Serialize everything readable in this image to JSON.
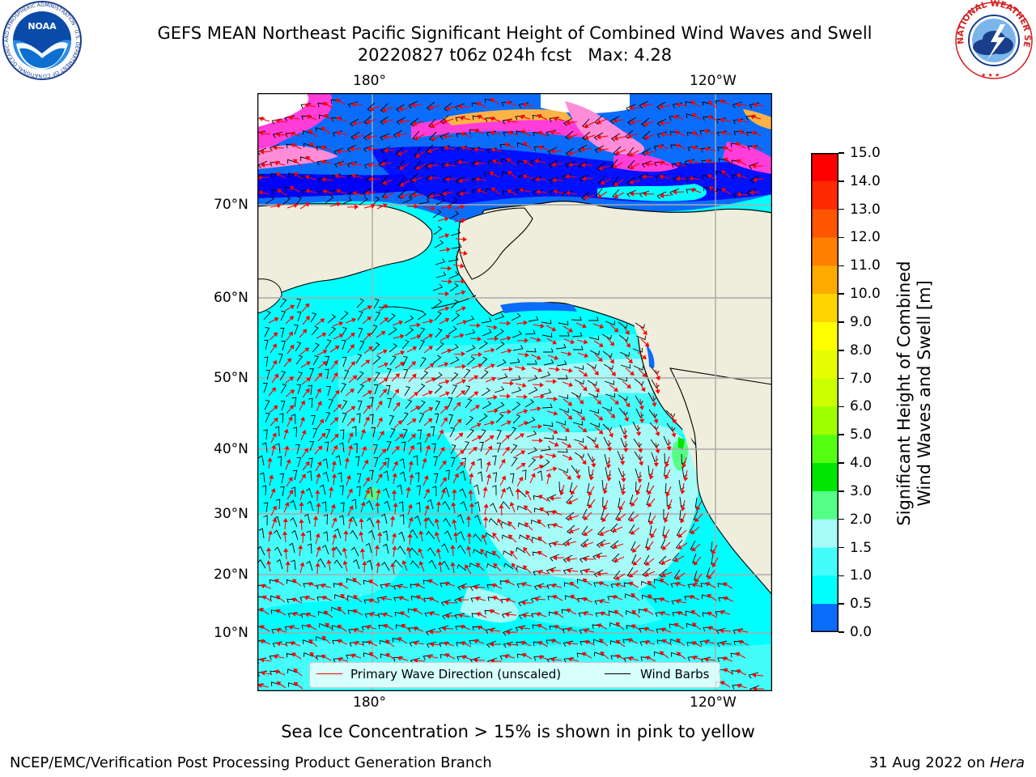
{
  "header": {
    "title_line1": "GEFS MEAN Northeast Pacific Significant Height of Combined Wind Waves and Swell",
    "title_line2": "20220827 t06z 024h fcst   Max: 4.28"
  },
  "logos": {
    "noaa_text": "NOAA",
    "noaa_ring_text": "NATIONAL OCEANIC AND ATMOSPHERIC ADMINISTRATION · U.S. DEPARTMENT OF COMMERCE",
    "nws_ring_text": "NATIONAL WEATHER SERVICE"
  },
  "map": {
    "lon_ticks_top": [
      "180°",
      "120°W"
    ],
    "lon_ticks_bottom": [
      "180°",
      "120°W"
    ],
    "lat_ticks": [
      "70°N",
      "60°N",
      "50°N",
      "40°N",
      "30°N",
      "20°N",
      "10°N"
    ],
    "colors": {
      "land": "#efeddb",
      "ocean_deep": "#00ffff",
      "ocean_mid": "#44fdfb",
      "ocean_light": "#a6fbf8",
      "ice_blue": "#0000ff",
      "ice_mid": "#0a6cfb",
      "ice_pink": "#ff3dd8",
      "ice_magenta": "#ff8cd8",
      "ice_orange": "#ffb347",
      "high_green": "#5cfa7a",
      "arrow": "#ff0000",
      "barb": "#000000"
    },
    "legend": {
      "wave_label": "Primary Wave Direction (unscaled)",
      "barb_label": "Wind Barbs"
    }
  },
  "colorbar": {
    "label_line1": "Significant Height of Combined",
    "label_line2": "Wind Waves and Swell [m]",
    "ticks": [
      "15.0",
      "14.0",
      "13.0",
      "12.0",
      "11.0",
      "10.0",
      "9.0",
      "8.0",
      "7.0",
      "6.0",
      "5.0",
      "4.0",
      "3.0",
      "2.0",
      "1.5",
      "1.0",
      "0.5",
      "0.0"
    ],
    "colors": [
      "#ff0000",
      "#ff2a00",
      "#ff5500",
      "#ff8000",
      "#ffaa00",
      "#ffd500",
      "#ffff00",
      "#e6ff00",
      "#ccff00",
      "#9eff00",
      "#55ff11",
      "#00e600",
      "#55ff88",
      "#a6fbf8",
      "#44fdfb",
      "#00ffff",
      "#0a6cfb",
      "#0000ff"
    ]
  },
  "captions": {
    "sea_ice_note": "Sea Ice Concentration > 15% is shown in pink to yellow",
    "footer_left": "NCEP/EMC/Verification Post Processing Product Generation Branch",
    "footer_right_prefix": "31 Aug 2022 on ",
    "footer_right_host": "Hera"
  }
}
